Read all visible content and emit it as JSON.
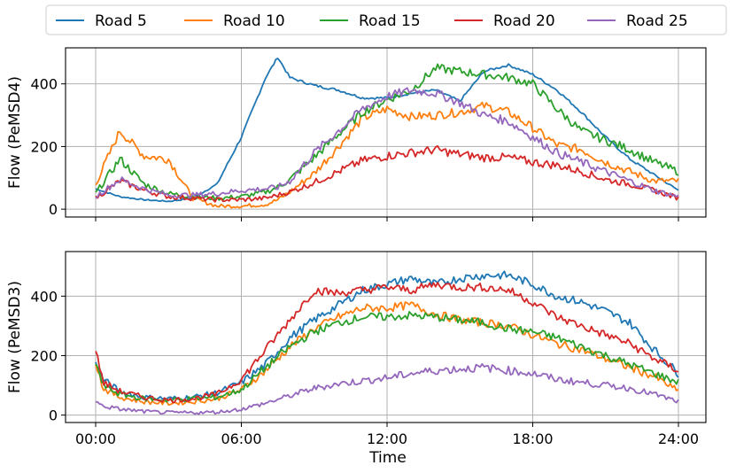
{
  "chart_data": {
    "type": "line",
    "xlabel": "Time",
    "xticks": [
      "00:00",
      "06:00",
      "12:00",
      "18:00",
      "24:00"
    ],
    "xlim": [
      0,
      24
    ],
    "legend": {
      "placement": "top-center",
      "entries": [
        "Road 5",
        "Road 10",
        "Road 15",
        "Road 20",
        "Road 25"
      ]
    },
    "grid": true,
    "colors": {
      "Road 5": "#1f77b4",
      "Road 10": "#ff7f0e",
      "Road 15": "#2ca02c",
      "Road 20": "#d62728",
      "Road 25": "#9467bd"
    },
    "panels": [
      {
        "ylabel": "Flow (PeMSD4)",
        "ylim": [
          -25,
          515
        ],
        "yticks": [
          0,
          200,
          400
        ],
        "x": [
          0,
          1,
          2,
          3,
          4,
          5,
          6,
          7,
          7.5,
          8,
          9,
          10,
          11,
          12,
          13,
          14,
          15,
          16,
          17,
          18,
          19,
          20,
          21,
          22,
          23,
          24
        ],
        "series": [
          {
            "name": "Road 5",
            "values": [
              65,
              40,
              30,
              25,
              35,
              80,
              230,
              420,
              485,
              420,
              395,
              380,
              355,
              355,
              370,
              380,
              345,
              440,
              460,
              430,
              380,
              310,
              230,
              160,
              110,
              60
            ]
          },
          {
            "name": "Road 10",
            "values": [
              80,
              250,
              170,
              160,
              35,
              10,
              10,
              15,
              30,
              55,
              115,
              200,
              290,
              320,
              295,
              300,
              310,
              330,
              310,
              260,
              205,
              190,
              150,
              120,
              90,
              90
            ]
          },
          {
            "name": "Road 15",
            "values": [
              50,
              160,
              80,
              50,
              40,
              35,
              40,
              55,
              70,
              95,
              165,
              240,
              310,
              350,
              380,
              450,
              440,
              430,
              420,
              400,
              320,
              250,
              220,
              190,
              150,
              120
            ]
          },
          {
            "name": "Road 20",
            "values": [
              35,
              90,
              60,
              40,
              35,
              30,
              30,
              35,
              45,
              55,
              85,
              120,
              155,
              170,
              180,
              190,
              175,
              165,
              165,
              150,
              140,
              120,
              95,
              80,
              60,
              35
            ]
          },
          {
            "name": "Road 25",
            "values": [
              40,
              95,
              65,
              45,
              45,
              50,
              60,
              65,
              70,
              90,
              180,
              250,
              320,
              360,
              380,
              370,
              340,
              300,
              280,
              230,
              180,
              150,
              120,
              90,
              60,
              40
            ]
          }
        ]
      },
      {
        "ylabel": "Flow (PeMSD3)",
        "ylim": [
          -25,
          550
        ],
        "yticks": [
          0,
          200,
          400
        ],
        "x": [
          0,
          0.3,
          1,
          2,
          3,
          4,
          5,
          6,
          7,
          8,
          9,
          10,
          11,
          12,
          13,
          14,
          15,
          16,
          17,
          18,
          19,
          20,
          21,
          22,
          23,
          24
        ],
        "series": [
          {
            "name": "Road 5",
            "values": [
              185,
              120,
              80,
              60,
              55,
              60,
              75,
              110,
              170,
              260,
              320,
              370,
              420,
              440,
              460,
              440,
              460,
              470,
              470,
              440,
              400,
              380,
              350,
              310,
              220,
              140
            ]
          },
          {
            "name": "Road 10",
            "values": [
              180,
              90,
              60,
              45,
              40,
              45,
              55,
              85,
              150,
              230,
              290,
              330,
              360,
              360,
              370,
              340,
              320,
              310,
              300,
              270,
              240,
              220,
              190,
              160,
              130,
              80
            ]
          },
          {
            "name": "Road 15",
            "values": [
              180,
              100,
              70,
              55,
              50,
              55,
              60,
              85,
              160,
              230,
              280,
              310,
              330,
              330,
              335,
              330,
              320,
              310,
              290,
              280,
              260,
              230,
              200,
              170,
              140,
              110
            ]
          },
          {
            "name": "Road 20",
            "values": [
              225,
              110,
              80,
              60,
              50,
              55,
              70,
              120,
              220,
              320,
              420,
              410,
              420,
              430,
              420,
              440,
              430,
              430,
              420,
              380,
              330,
              300,
              270,
              240,
              190,
              150
            ]
          },
          {
            "name": "Road 25",
            "values": [
              45,
              30,
              20,
              12,
              8,
              8,
              10,
              20,
              40,
              65,
              90,
              105,
              115,
              125,
              140,
              150,
              155,
              160,
              150,
              140,
              120,
              110,
              100,
              90,
              70,
              45
            ]
          }
        ]
      }
    ]
  }
}
